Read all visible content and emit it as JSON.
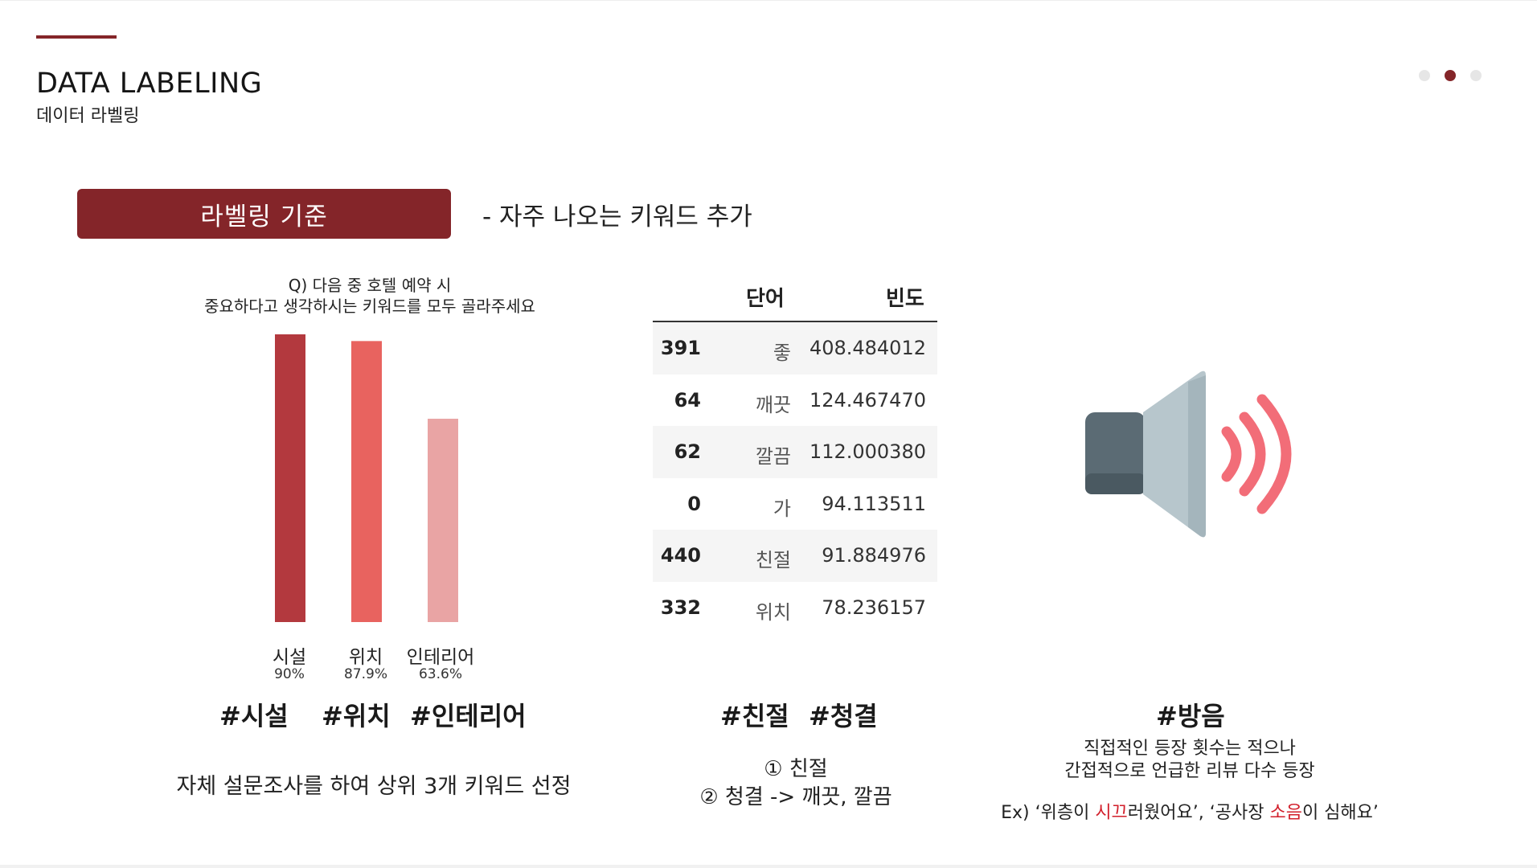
{
  "header": {
    "title": "DATA LABELING",
    "subtitle": "데이터 라벨링"
  },
  "pagination": {
    "dots": 3,
    "active_index": 1
  },
  "criteria": {
    "badge_label": "라벨링 기준",
    "note": "- 자주 나오는 키워드 추가"
  },
  "survey": {
    "question_line1": "Q) 다음 중 호텔 예약 시",
    "question_line2": "중요하다고 생각하시는 키워드를 모두 골라주세요",
    "colors": [
      "#b3393e",
      "#e8635f",
      "#e9a4a4"
    ]
  },
  "chart_data": {
    "type": "bar",
    "categories": [
      "시설",
      "위치",
      "인테리어"
    ],
    "values": [
      90,
      87.9,
      63.6
    ],
    "value_labels": [
      "90%",
      "87.9%",
      "63.6%"
    ]
  },
  "hashtags_left": [
    "#시설",
    "#위치",
    "#인테리어"
  ],
  "survey_caption": "자체 설문조사를 하여 상위 3개 키워드 선정",
  "table": {
    "headers": [
      "단어",
      "빈도"
    ],
    "rows": [
      {
        "idx": "391",
        "word": "좋",
        "value": "408.484012"
      },
      {
        "idx": "64",
        "word": "깨끗",
        "value": "124.467470"
      },
      {
        "idx": "62",
        "word": "깔끔",
        "value": "112.000380"
      },
      {
        "idx": "0",
        "word": "가",
        "value": "94.113511"
      },
      {
        "idx": "440",
        "word": "친절",
        "value": "91.884976"
      },
      {
        "idx": "332",
        "word": "위치",
        "value": "78.236157"
      }
    ]
  },
  "hashtags_middle": [
    "#친절",
    "#청결"
  ],
  "middle_notes": [
    "① 친절",
    "② 청결 -> 깨끗, 깔끔"
  ],
  "right": {
    "hashtag": "#방음",
    "desc_line1": "직접적인 등장 횟수는 적으나",
    "desc_line2": "간접적으로 언급한 리뷰 다수 등장",
    "example": {
      "p1": "Ex) ‘위층이 ",
      "h1": "시끄",
      "p2": "러웠어요’, ‘공사장 ",
      "h2": "소음",
      "p3": "이 심해요’"
    },
    "icon": "speaker-volume-icon",
    "icon_colors": [
      "#5b6b74",
      "#b7c6cc",
      "#f26d78"
    ]
  }
}
